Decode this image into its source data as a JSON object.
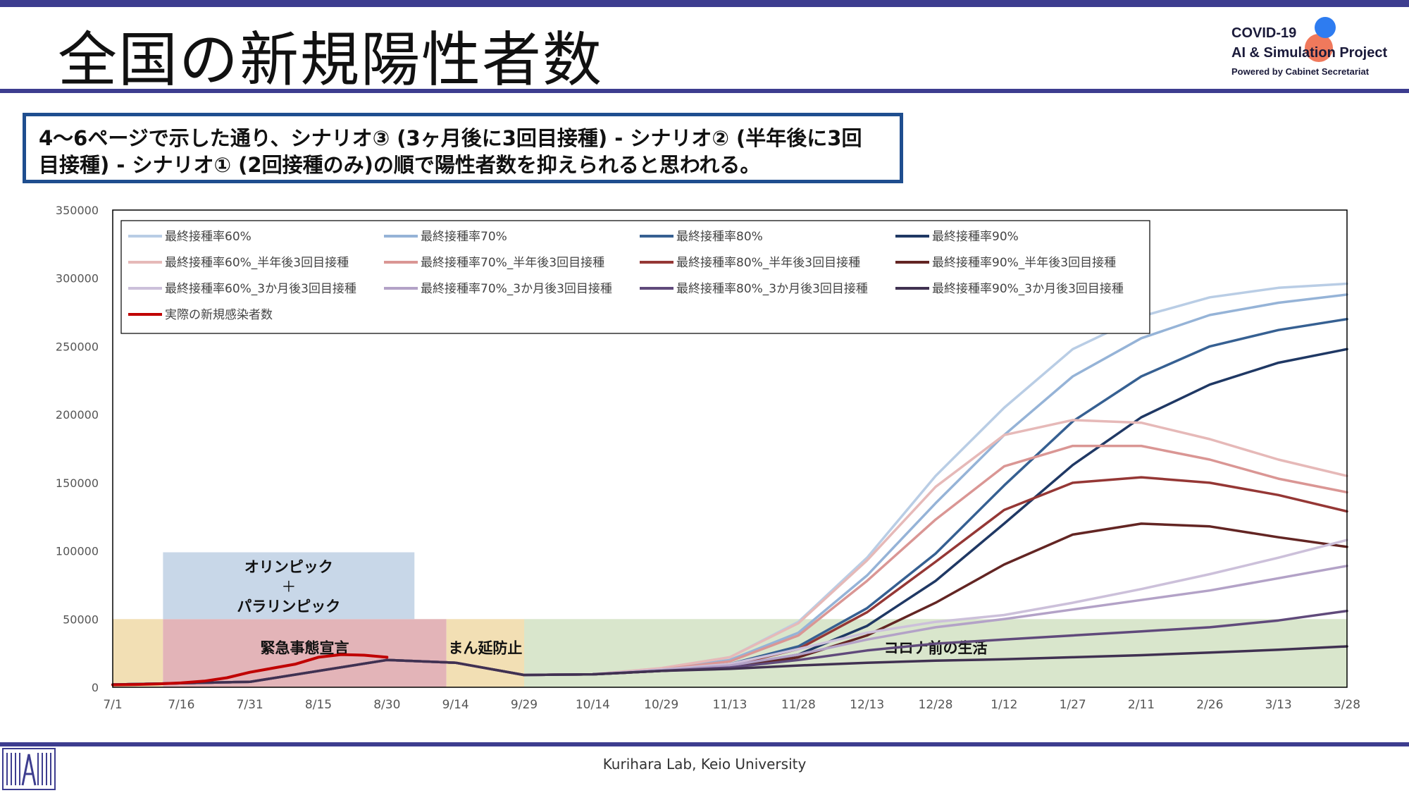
{
  "header": {
    "title": "全国の新規陽性者数",
    "logo_line1": "COVID-19",
    "logo_line2": "AI & Simulation Project",
    "logo_line3": "Powered by Cabinet Secretariat"
  },
  "callout": {
    "line1": "4～6ページで示した通り、シナリオ③ (3ヶ月後に3回目接種) - シナリオ② (半年後に3回",
    "line2": "目接種) - シナリオ① (2回接種のみ)の順で陽性者数を抑えられると思われる。"
  },
  "footer": {
    "text": "Kurihara Lab, Keio University"
  },
  "chart_data": {
    "type": "line",
    "ylim": [
      0,
      350000
    ],
    "yticks": [
      0,
      50000,
      100000,
      150000,
      200000,
      250000,
      300000,
      350000
    ],
    "x_tick_labels": [
      "7/1",
      "7/16",
      "7/31",
      "8/15",
      "8/30",
      "9/14",
      "9/29",
      "10/14",
      "10/29",
      "11/13",
      "11/28",
      "12/13",
      "12/28",
      "1/12",
      "1/27",
      "2/11",
      "2/26",
      "3/13",
      "3/28"
    ],
    "x_day_range": [
      0,
      270
    ],
    "legend_placement": "top-left, inside, 4 columns",
    "regions": [
      {
        "label": "",
        "x_start": 0,
        "x_end": 11,
        "y_top": 50000,
        "color": "#f2dfb4"
      },
      {
        "label": "緊急事態宣言",
        "x_start": 11,
        "x_end": 73,
        "y_top": 50000,
        "color": "#e3b4b8"
      },
      {
        "label": "まん延防止",
        "x_start": 73,
        "x_end": 90,
        "y_top": 50000,
        "color": "#f2dfb4"
      },
      {
        "label": "コロナ前の生活",
        "x_start": 90,
        "x_end": 273,
        "y_top": 50000,
        "color": "#d9e6cc"
      }
    ],
    "event_box": {
      "line1": "オリンピック",
      "line2": "＋",
      "line3": "パラリンピック",
      "x_start": 11,
      "x_end": 66,
      "y_bottom": 50000,
      "y_top": 99000,
      "color": "#c8d7e8"
    },
    "series": [
      {
        "name": "最終接種率60%",
        "color": "#b9cde5",
        "x": [
          0,
          30,
          60,
          75,
          90,
          105,
          120,
          135,
          150,
          165,
          180,
          195,
          210,
          225,
          240,
          255,
          270
        ],
        "values": [
          2000,
          4000,
          20000,
          18000,
          9000,
          9500,
          14000,
          22000,
          48000,
          95000,
          155000,
          205000,
          248000,
          272000,
          286000,
          293000,
          296000
        ]
      },
      {
        "name": "最終接種率70%",
        "color": "#95b3d7",
        "x": [
          0,
          30,
          60,
          75,
          90,
          105,
          120,
          135,
          150,
          165,
          180,
          195,
          210,
          225,
          240,
          255,
          270
        ],
        "values": [
          2000,
          4000,
          20000,
          18000,
          9000,
          9500,
          13000,
          20000,
          40000,
          82000,
          135000,
          185000,
          228000,
          256000,
          273000,
          282000,
          288000
        ]
      },
      {
        "name": "最終接種率80%",
        "color": "#366092",
        "x": [
          0,
          30,
          60,
          75,
          90,
          105,
          120,
          135,
          150,
          165,
          180,
          195,
          210,
          225,
          240,
          255,
          270
        ],
        "values": [
          2000,
          4000,
          20000,
          18000,
          9000,
          9500,
          12500,
          17000,
          30000,
          58000,
          98000,
          148000,
          195000,
          228000,
          250000,
          262000,
          270000
        ]
      },
      {
        "name": "最終接種率90%",
        "color": "#1f3864",
        "x": [
          0,
          30,
          60,
          75,
          90,
          105,
          120,
          135,
          150,
          165,
          180,
          195,
          210,
          225,
          240,
          255,
          270
        ],
        "values": [
          2000,
          4000,
          20000,
          18000,
          9000,
          9500,
          12000,
          15000,
          24000,
          45000,
          78000,
          120000,
          163000,
          198000,
          222000,
          238000,
          248000
        ]
      },
      {
        "name": "最終接種率60%_半年後3回目接種",
        "color": "#e6b9b8",
        "x": [
          0,
          30,
          60,
          75,
          90,
          105,
          120,
          135,
          150,
          165,
          180,
          195,
          210,
          225,
          240,
          255,
          270
        ],
        "values": [
          2000,
          4000,
          20000,
          18000,
          9000,
          9500,
          14000,
          22000,
          47000,
          93000,
          147000,
          185000,
          196000,
          194000,
          182000,
          167000,
          155000
        ]
      },
      {
        "name": "最終接種率70%_半年後3回目接種",
        "color": "#da9694",
        "x": [
          0,
          30,
          60,
          75,
          90,
          105,
          120,
          135,
          150,
          165,
          180,
          195,
          210,
          225,
          240,
          255,
          270
        ],
        "values": [
          2000,
          4000,
          20000,
          18000,
          9000,
          9500,
          13000,
          19000,
          38000,
          78000,
          123000,
          162000,
          177000,
          177000,
          167000,
          153000,
          143000
        ]
      },
      {
        "name": "最終接種率80%_半年後3回目接種",
        "color": "#953735",
        "x": [
          0,
          30,
          60,
          75,
          90,
          105,
          120,
          135,
          150,
          165,
          180,
          195,
          210,
          225,
          240,
          255,
          270
        ],
        "values": [
          2000,
          4000,
          20000,
          18000,
          9000,
          9500,
          12500,
          16000,
          28000,
          55000,
          92000,
          130000,
          150000,
          154000,
          150000,
          141000,
          129000
        ]
      },
      {
        "name": "最終接種率90%_半年後3回目接種",
        "color": "#632523",
        "x": [
          0,
          30,
          60,
          75,
          90,
          105,
          120,
          135,
          150,
          165,
          180,
          195,
          210,
          225,
          240,
          255,
          270
        ],
        "values": [
          2000,
          4000,
          20000,
          18000,
          9000,
          9500,
          12000,
          14000,
          22000,
          38000,
          62000,
          90000,
          112000,
          120000,
          118000,
          110000,
          103000
        ]
      },
      {
        "name": "最終接種率60%_3か月後3回目接種",
        "color": "#ccc0da",
        "x": [
          0,
          30,
          60,
          75,
          90,
          105,
          120,
          135,
          150,
          165,
          180,
          195,
          210,
          225,
          240,
          255,
          270
        ],
        "values": [
          2000,
          4000,
          20000,
          18000,
          9000,
          9500,
          13000,
          17000,
          28000,
          40000,
          48000,
          53000,
          62000,
          72000,
          83000,
          95000,
          108000
        ]
      },
      {
        "name": "最終接種率70%_3か月後3回目接種",
        "color": "#b3a2c7",
        "x": [
          0,
          30,
          60,
          75,
          90,
          105,
          120,
          135,
          150,
          165,
          180,
          195,
          210,
          225,
          240,
          255,
          270
        ],
        "values": [
          2000,
          4000,
          20000,
          18000,
          9000,
          9500,
          12500,
          16000,
          24000,
          35000,
          44000,
          50000,
          57000,
          64000,
          71000,
          80000,
          89000
        ]
      },
      {
        "name": "最終接種率80%_3か月後3回目接種",
        "color": "#604a7b",
        "x": [
          0,
          30,
          60,
          75,
          90,
          105,
          120,
          135,
          150,
          165,
          180,
          195,
          210,
          225,
          240,
          255,
          270
        ],
        "values": [
          2000,
          4000,
          20000,
          18000,
          9000,
          9500,
          12000,
          14500,
          20000,
          27000,
          32000,
          35000,
          38000,
          41000,
          44000,
          49000,
          56000
        ]
      },
      {
        "name": "最終接種率90%_3か月後3回目接種",
        "color": "#403151",
        "x": [
          0,
          30,
          60,
          75,
          90,
          105,
          120,
          135,
          150,
          165,
          180,
          195,
          210,
          225,
          240,
          255,
          270
        ],
        "values": [
          2000,
          4000,
          20000,
          18000,
          9000,
          9500,
          12000,
          13500,
          16000,
          18000,
          19500,
          20500,
          22000,
          23500,
          25500,
          27500,
          30000
        ]
      },
      {
        "name": "実際の新規感染者数",
        "color": "#c00000",
        "x": [
          0,
          5,
          10,
          15,
          20,
          25,
          30,
          35,
          40,
          45,
          50,
          55,
          60
        ],
        "values": [
          1800,
          2000,
          2500,
          3200,
          4500,
          7000,
          11000,
          14000,
          17000,
          22000,
          24000,
          23500,
          22000
        ]
      }
    ]
  }
}
